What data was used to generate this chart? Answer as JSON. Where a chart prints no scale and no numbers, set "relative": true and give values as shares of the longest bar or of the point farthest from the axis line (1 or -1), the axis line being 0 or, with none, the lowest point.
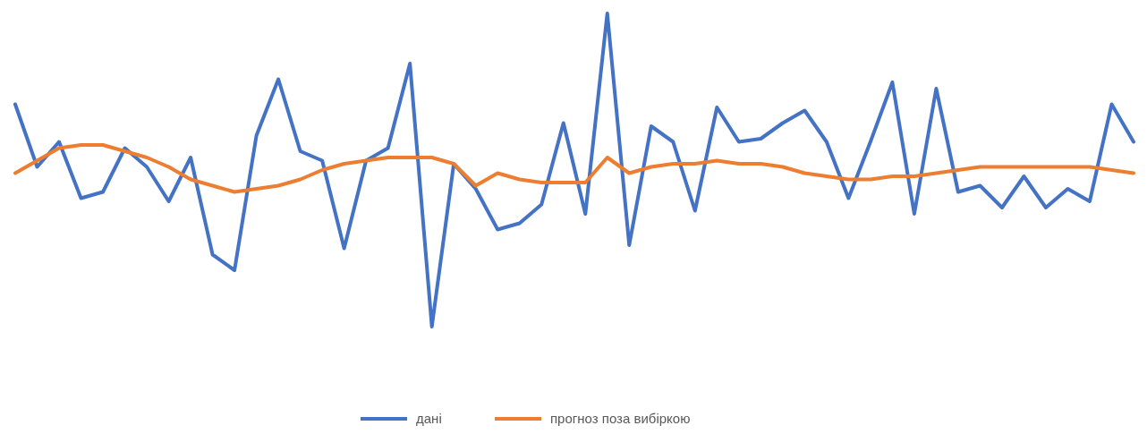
{
  "chart_data": {
    "type": "line",
    "relative": true,
    "legend": "bottom",
    "marker": "none",
    "line_style": "solid",
    "categories": [
      null,
      null,
      null,
      null,
      null,
      null,
      null,
      null,
      null,
      null,
      null,
      null,
      null,
      null,
      null,
      null,
      null,
      null,
      null,
      null,
      null,
      null,
      null,
      null,
      null,
      null,
      null,
      null,
      null,
      null,
      null,
      null,
      null,
      null,
      null,
      null,
      null,
      null,
      null,
      null,
      null,
      null,
      null,
      null,
      null,
      null,
      null,
      null,
      null,
      null,
      null,
      null
    ],
    "series": [
      {
        "name": "дані",
        "color": "#4472c4",
        "values": [
          0.71,
          0.51,
          0.59,
          0.41,
          0.43,
          0.57,
          0.51,
          0.4,
          0.54,
          0.23,
          0.18,
          0.61,
          0.79,
          0.56,
          0.53,
          0.25,
          0.53,
          0.57,
          0.84,
          0,
          0.52,
          0.44,
          0.31,
          0.33,
          0.39,
          0.65,
          0.36,
          1,
          0.26,
          0.64,
          0.59,
          0.37,
          0.7,
          0.59,
          0.6,
          0.65,
          0.69,
          0.59,
          0.41,
          0.59,
          0.78,
          0.36,
          0.76,
          0.43,
          0.45,
          0.38,
          0.48,
          0.38,
          0.44,
          0.4,
          0.71,
          0.59
        ]
      },
      {
        "name": "прогноз поза вибіркою",
        "color": "#ed7d31",
        "values": [
          0.49,
          0.53,
          0.57,
          0.58,
          0.58,
          0.56,
          0.54,
          0.51,
          0.47,
          0.45,
          0.43,
          0.44,
          0.45,
          0.47,
          0.5,
          0.52,
          0.53,
          0.54,
          0.54,
          0.54,
          0.52,
          0.45,
          0.49,
          0.47,
          0.46,
          0.46,
          0.46,
          0.54,
          0.49,
          0.51,
          0.52,
          0.52,
          0.53,
          0.52,
          0.52,
          0.51,
          0.49,
          0.48,
          0.47,
          0.47,
          0.48,
          0.48,
          0.49,
          0.5,
          0.51,
          0.51,
          0.51,
          0.51,
          0.51,
          0.51,
          0.5,
          0.49
        ]
      }
    ]
  }
}
